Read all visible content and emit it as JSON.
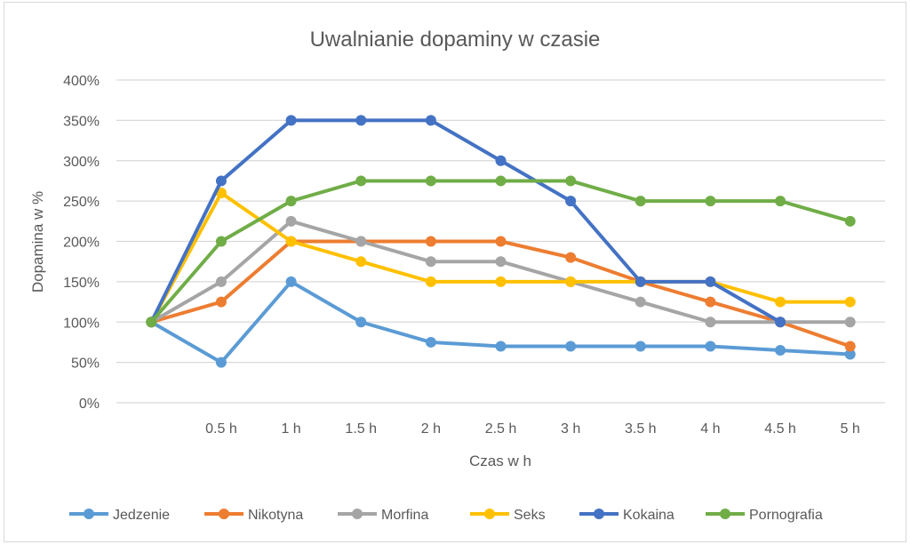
{
  "chart_data": {
    "type": "line",
    "title": "Uwalnianie dopaminy w czasie",
    "xlabel": "Czas w h",
    "ylabel": "Dopamina w %",
    "categories": [
      "",
      "0.5 h",
      "1 h",
      "1.5 h",
      "2 h",
      "2.5 h",
      "3 h",
      "3.5 h",
      "4 h",
      "4.5 h",
      "5 h"
    ],
    "yticks": [
      "0%",
      "50%",
      "100%",
      "150%",
      "200%",
      "250%",
      "300%",
      "350%",
      "400%"
    ],
    "ylim": [
      0,
      400
    ],
    "grid": true,
    "legend": "bottom",
    "series": [
      {
        "name": "Jedzenie",
        "color": "#5B9BD5",
        "values": [
          100,
          50,
          150,
          100,
          75,
          70,
          70,
          70,
          70,
          65,
          60
        ]
      },
      {
        "name": "Nikotyna",
        "color": "#ED7D31",
        "values": [
          100,
          125,
          200,
          200,
          200,
          200,
          180,
          150,
          125,
          100,
          70
        ]
      },
      {
        "name": "Morfina",
        "color": "#A5A5A5",
        "values": [
          100,
          150,
          225,
          200,
          175,
          175,
          150,
          125,
          100,
          100,
          100
        ]
      },
      {
        "name": "Seks",
        "color": "#FFC000",
        "values": [
          100,
          260,
          200,
          175,
          150,
          150,
          150,
          150,
          150,
          125,
          125
        ]
      },
      {
        "name": "Kokaina",
        "color": "#4472C4",
        "values": [
          100,
          275,
          350,
          350,
          350,
          300,
          250,
          150,
          150,
          100,
          null
        ]
      },
      {
        "name": "Pornografia",
        "color": "#70AD47",
        "values": [
          100,
          200,
          250,
          275,
          275,
          275,
          275,
          250,
          250,
          250,
          225
        ]
      }
    ]
  }
}
